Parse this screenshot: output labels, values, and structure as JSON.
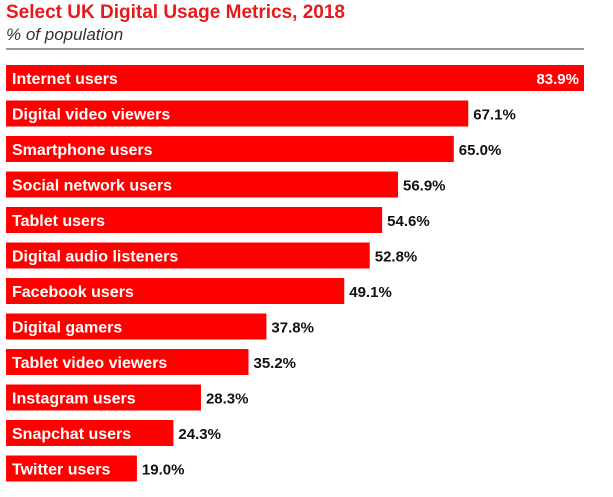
{
  "header": {
    "title": "Select UK Digital Usage Metrics, 2018",
    "subtitle": "% of population"
  },
  "colors": {
    "bar": "#fe0000",
    "title": "#e8191a"
  },
  "chart_data": {
    "type": "bar",
    "orientation": "horizontal",
    "title": "Select UK Digital Usage Metrics, 2018",
    "subtitle": "% of population",
    "categories": [
      "Internet users",
      "Digital video viewers",
      "Smartphone users",
      "Social network users",
      "Tablet users",
      "Digital audio listeners",
      "Facebook users",
      "Digital gamers",
      "Tablet video viewers",
      "Instagram users",
      "Snapchat users",
      "Twitter users"
    ],
    "values": [
      83.9,
      67.1,
      65.0,
      56.9,
      54.6,
      52.8,
      49.1,
      37.8,
      35.2,
      28.3,
      24.3,
      19.0
    ],
    "value_labels": [
      "83.9%",
      "67.1%",
      "65.0%",
      "56.9%",
      "54.6%",
      "52.8%",
      "49.1%",
      "37.8%",
      "35.2%",
      "28.3%",
      "24.3%",
      "19.0%"
    ],
    "xlabel": "",
    "ylabel": "",
    "grid": false
  }
}
